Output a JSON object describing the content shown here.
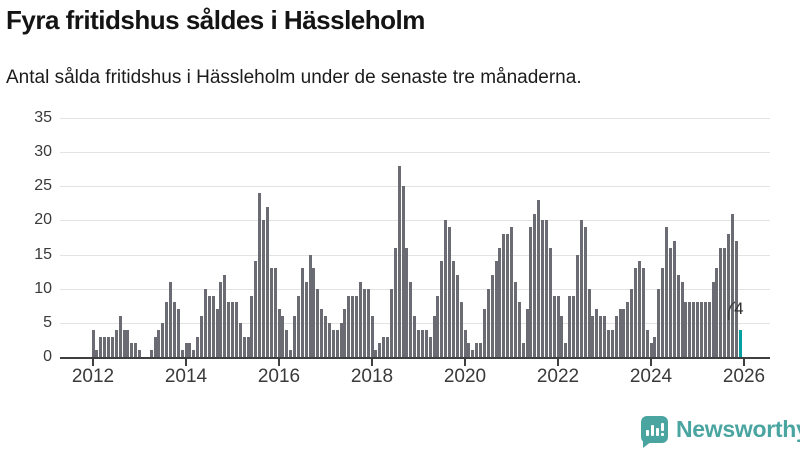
{
  "header": {
    "title": "Fyra fritidshus såldes i Hässleholm",
    "subtitle": "Antal sålda fritidshus i Hässleholm under de senaste tre månaderna."
  },
  "chart_data": {
    "type": "bar",
    "title": "Fyra fritidshus såldes i Hässleholm",
    "subtitle": "Antal sålda fritidshus i Hässleholm under de senaste tre månaderna.",
    "x_start": "2012-01",
    "x_end": "2025-12",
    "x_tick_labels": [
      "2012",
      "2014",
      "2016",
      "2018",
      "2020",
      "2022",
      "2024",
      "2026"
    ],
    "y_ticks": [
      0,
      5,
      10,
      15,
      20,
      25,
      30,
      35
    ],
    "ylim": [
      0,
      35
    ],
    "grid": true,
    "legend": "none",
    "series": [
      {
        "values": [
          4,
          1,
          3,
          3,
          3,
          3,
          4,
          6,
          4,
          4,
          2,
          2,
          1,
          0,
          0,
          1,
          3,
          4,
          5,
          8,
          11,
          8,
          7,
          1,
          2,
          2,
          1,
          3,
          6,
          10,
          9,
          9,
          7,
          11,
          12,
          8,
          8,
          8,
          5,
          3,
          3,
          9,
          14,
          24,
          20,
          22,
          13,
          13,
          7,
          6,
          4,
          1,
          6,
          9,
          13,
          11,
          15,
          13,
          10,
          7,
          6,
          5,
          4,
          4,
          5,
          7,
          9,
          9,
          9,
          11,
          10,
          10,
          6,
          1,
          2,
          3,
          3,
          10,
          16,
          28,
          25,
          16,
          11,
          6,
          4,
          4,
          4,
          3,
          6,
          9,
          14,
          20,
          19,
          14,
          12,
          8,
          4,
          2,
          1,
          2,
          2,
          7,
          10,
          12,
          14,
          16,
          18,
          18,
          19,
          11,
          8,
          2,
          7,
          19,
          21,
          23,
          20,
          20,
          16,
          9,
          9,
          6,
          2,
          9,
          9,
          15,
          20,
          19,
          10,
          6,
          7,
          6,
          6,
          4,
          4,
          6,
          7,
          7,
          8,
          10,
          13,
          14,
          13,
          4,
          2,
          3,
          10,
          13,
          19,
          16,
          17,
          12,
          11,
          8,
          8,
          8,
          8,
          8,
          8,
          8,
          11,
          13,
          16,
          16,
          18,
          21,
          17,
          4
        ]
      }
    ],
    "highlight": {
      "position": "last",
      "value": 4,
      "value_label": "4"
    },
    "colors": {
      "bar": "#6b6b73",
      "highlight": "#00a0a0",
      "axis": "#3f3f3f",
      "grid": "#e3e3e3",
      "tick_label": "#3a3a3a"
    }
  },
  "logo": {
    "text": "Newsworthy",
    "color": "#4aa5a1",
    "icon": "newsworthy-bars-bubble-icon"
  }
}
